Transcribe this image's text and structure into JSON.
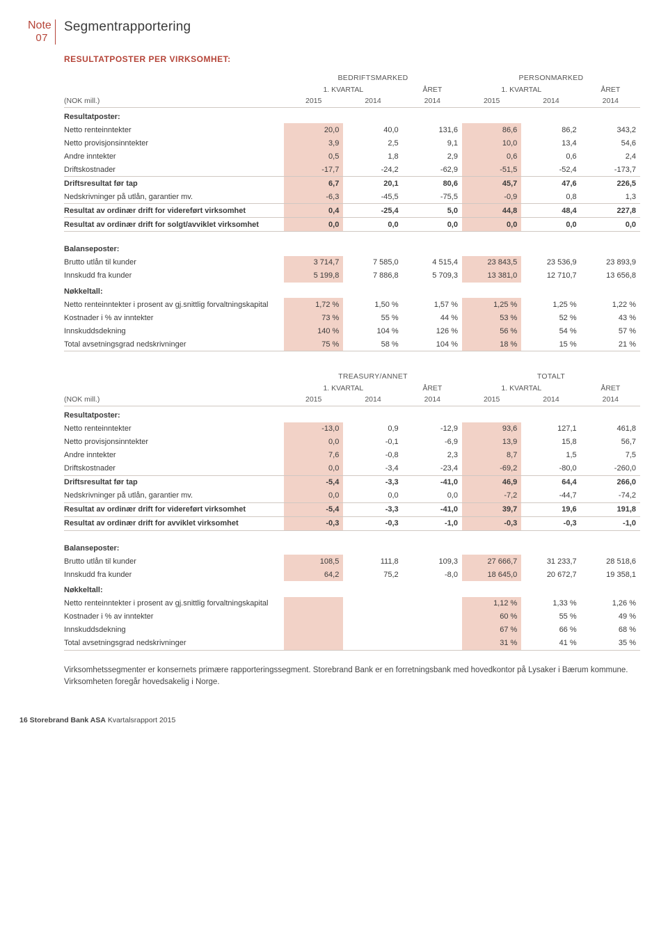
{
  "note": {
    "label": "Note",
    "number": "07",
    "title": "Segmentrapportering"
  },
  "section_heading": "RESULTATPOSTER PER VIRKSOMHET:",
  "headers": {
    "groupA1": "BEDRIFTSMARKED",
    "groupA2": "PERSONMARKED",
    "groupB1": "TREASURY/ANNET",
    "groupB2": "TOTALT",
    "kvartal": "1. KVARTAL",
    "aret": "ÅRET",
    "unit": "(NOK mill.)",
    "y2015": "2015",
    "y2014": "2014"
  },
  "rows_labels": {
    "resultatposter": "Resultatposter:",
    "netto_rente": "Netto renteinntekter",
    "netto_prov": "Netto provisjonsinntekter",
    "andre_innt": "Andre inntekter",
    "driftskost": "Driftskostnader",
    "drift_for_tap": "Driftsresultat før tap",
    "nedskriv": "Nedskrivninger på utlån, garantier mv.",
    "res_videre": "Resultat av ordinær drift for videreført virksomhet",
    "res_solgt": "Resultat av ordinær drift for solgt/avviklet virksomhet",
    "res_avviklet": "Resultat av ordinær drift for avviklet virksomhet",
    "balanseposter": "Balanseposter:",
    "brutto_utlan": "Brutto utlån til kunder",
    "innskudd": "Innskudd fra kunder",
    "nokkeltall": "Nøkkeltall:",
    "netto_rente_pct": "Netto renteinntekter  i prosent av gj.snittlig forvaltningskapital",
    "kost_pct": "Kostnader i % av inntekter",
    "innsk_dekk": "Innskuddsdekning",
    "tot_avset": "Total avsetningsgrad nedskrivninger"
  },
  "tableA": {
    "netto_rente": [
      "20,0",
      "40,0",
      "131,6",
      "86,6",
      "86,2",
      "343,2"
    ],
    "netto_prov": [
      "3,9",
      "2,5",
      "9,1",
      "10,0",
      "13,4",
      "54,6"
    ],
    "andre_innt": [
      "0,5",
      "1,8",
      "2,9",
      "0,6",
      "0,6",
      "2,4"
    ],
    "driftskost": [
      "-17,7",
      "-24,2",
      "-62,9",
      "-51,5",
      "-52,4",
      "-173,7"
    ],
    "drift_for_tap": [
      "6,7",
      "20,1",
      "80,6",
      "45,7",
      "47,6",
      "226,5"
    ],
    "nedskriv": [
      "-6,3",
      "-45,5",
      "-75,5",
      "-0,9",
      "0,8",
      "1,3"
    ],
    "res_videre": [
      "0,4",
      "-25,4",
      "5,0",
      "44,8",
      "48,4",
      "227,8"
    ],
    "res_solgt": [
      "0,0",
      "0,0",
      "0,0",
      "0,0",
      "0,0",
      "0,0"
    ],
    "brutto_utlan": [
      "3 714,7",
      "7 585,0",
      "4 515,4",
      "23 843,5",
      "23 536,9",
      "23 893,9"
    ],
    "innskudd": [
      "5 199,8",
      "7 886,8",
      "5 709,3",
      "13 381,0",
      "12 710,7",
      "13 656,8"
    ],
    "netto_rente_pct": [
      "1,72 %",
      "1,50 %",
      "1,57 %",
      "1,25 %",
      "1,25 %",
      "1,22 %"
    ],
    "kost_pct": [
      "73 %",
      "55 %",
      "44 %",
      "53 %",
      "52 %",
      "43 %"
    ],
    "innsk_dekk": [
      "140 %",
      "104 %",
      "126 %",
      "56 %",
      "54 %",
      "57 %"
    ],
    "tot_avset": [
      "75 %",
      "58 %",
      "104 %",
      "18 %",
      "15 %",
      "21 %"
    ]
  },
  "tableB": {
    "netto_rente": [
      "-13,0",
      "0,9",
      "-12,9",
      "93,6",
      "127,1",
      "461,8"
    ],
    "netto_prov": [
      "0,0",
      "-0,1",
      "-6,9",
      "13,9",
      "15,8",
      "56,7"
    ],
    "andre_innt": [
      "7,6",
      "-0,8",
      "2,3",
      "8,7",
      "1,5",
      "7,5"
    ],
    "driftskost": [
      "0,0",
      "-3,4",
      "-23,4",
      "-69,2",
      "-80,0",
      "-260,0"
    ],
    "drift_for_tap": [
      "-5,4",
      "-3,3",
      "-41,0",
      "46,9",
      "64,4",
      "266,0"
    ],
    "nedskriv": [
      "0,0",
      "0,0",
      "0,0",
      "-7,2",
      "-44,7",
      "-74,2"
    ],
    "res_videre": [
      "-5,4",
      "-3,3",
      "-41,0",
      "39,7",
      "19,6",
      "191,8"
    ],
    "res_avviklet": [
      "-0,3",
      "-0,3",
      "-1,0",
      "-0,3",
      "-0,3",
      "-1,0"
    ],
    "brutto_utlan": [
      "108,5",
      "111,8",
      "109,3",
      "27 666,7",
      "31 233,7",
      "28 518,6"
    ],
    "innskudd": [
      "64,2",
      "75,2",
      "-8,0",
      "18 645,0",
      "20 672,7",
      "19 358,1"
    ],
    "netto_rente_pct": [
      "",
      "",
      "",
      "1,12 %",
      "1,33 %",
      "1,26 %"
    ],
    "kost_pct": [
      "",
      "",
      "",
      "60 %",
      "55 %",
      "49 %"
    ],
    "innsk_dekk": [
      "",
      "",
      "",
      "67 %",
      "66 %",
      "68 %"
    ],
    "tot_avset": [
      "",
      "",
      "",
      "31 %",
      "41 %",
      "35 %"
    ]
  },
  "body_text": "Virksomhetssegmenter er konsernets primære rapporteringssegment. Storebrand Bank er en forretningsbank med hovedkontor på Lysaker i Bærum kommune. Virksomheten foregår hovedsakelig i Norge.",
  "footer": {
    "page": "16",
    "company": "Storebrand Bank ASA",
    "doc": "Kvartalsrapport 2015"
  },
  "colors": {
    "accent": "#b54438",
    "hl": "#f2d2c7",
    "rule": "#d0c8c2"
  }
}
